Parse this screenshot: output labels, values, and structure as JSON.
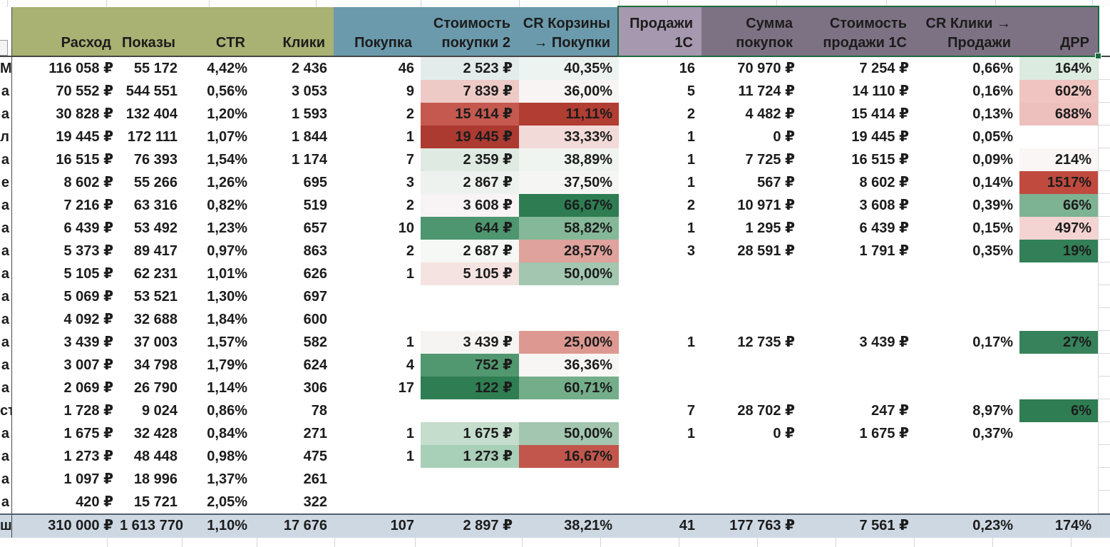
{
  "palette": {
    "header_olive": "#a9b173",
    "header_teal": "#6b9aac",
    "header_purple_light": "#a698ae",
    "header_purple_dark": "#7d7284",
    "selection_border_green": "#1d6b40",
    "total_row_bg": "#cdd8e3",
    "grid_line": "#d9d9d9",
    "text": "#1c1c1c",
    "scale_dark_green": "#2f7d52",
    "scale_dark_red": "#b23d33"
  },
  "columns": [
    {
      "id": "row-label",
      "label": "",
      "group": "none"
    },
    {
      "id": "rashod",
      "label": "Расход",
      "group": "olive"
    },
    {
      "id": "pokazy",
      "label": "Показы",
      "group": "olive"
    },
    {
      "id": "ctr",
      "label": "CTR",
      "group": "olive"
    },
    {
      "id": "kliki",
      "label": "Клики",
      "group": "olive"
    },
    {
      "id": "pokupka",
      "label": "Покупка",
      "group": "teal"
    },
    {
      "id": "stoimost-pokupki-2",
      "label": "Стоимость\nпокупки 2",
      "group": "teal"
    },
    {
      "id": "cr-korziny-pokupki",
      "label": "CR Корзины\n→ Покупки",
      "group": "teal"
    },
    {
      "id": "prodazhi-1c",
      "label": "Продажи\n1С",
      "group": "purple_light"
    },
    {
      "id": "summa-pokupok",
      "label": "Сумма\nпокупок",
      "group": "purple_dark"
    },
    {
      "id": "stoimost-prodazhi-1c",
      "label": "Стоимость\nпродажи 1С",
      "group": "purple_dark"
    },
    {
      "id": "cr-kliki-prodazhi",
      "label": "CR Клики →\nПродажи",
      "group": "purple_dark"
    },
    {
      "id": "drr",
      "label": "ДРР",
      "group": "purple_dark"
    }
  ],
  "rows": [
    {
      "label": "М",
      "values": [
        "116 058 ₽",
        "55 172",
        "4,42%",
        "2 436",
        "46",
        "2 523 ₽",
        "40,35%",
        "16",
        "70 970 ₽",
        "7 254 ₽",
        "0,66%",
        "164%"
      ],
      "fills": {
        "5": "#e3eceb",
        "6": "#edf3f0",
        "11": "#dcebe0"
      }
    },
    {
      "label": "а",
      "values": [
        "70 552 ₽",
        "544 551",
        "0,56%",
        "3 053",
        "9",
        "7 839 ₽",
        "36,00%",
        "5",
        "11 724 ₽",
        "14 110 ₽",
        "0,16%",
        "602%"
      ],
      "fills": {
        "5": "#eecac7",
        "6": "#f8f4f4",
        "11": "#efc4c1"
      }
    },
    {
      "label": "а",
      "values": [
        "30 828 ₽",
        "132 404",
        "1,20%",
        "1 593",
        "2",
        "15 414 ₽",
        "11,11%",
        "2",
        "4 482 ₽",
        "15 414 ₽",
        "0,13%",
        "688%"
      ],
      "fills": {
        "5": "#c5594f",
        "6": "#b23d33",
        "11": "#edc0bd"
      }
    },
    {
      "label": "л",
      "values": [
        "19 445 ₽",
        "172 111",
        "1,07%",
        "1 844",
        "1",
        "19 445 ₽",
        "33,33%",
        "1",
        "0 ₽",
        "19 445 ₽",
        "0,05%",
        ""
      ],
      "fills": {
        "5": "#ac3a31",
        "6": "#f2dad8"
      }
    },
    {
      "label": "а",
      "values": [
        "16 515 ₽",
        "76 393",
        "1,54%",
        "1 174",
        "7",
        "2 359 ₽",
        "38,89%",
        "1",
        "7 725 ₽",
        "16 515 ₽",
        "0,09%",
        "214%"
      ],
      "fills": {
        "5": "#dfeae2",
        "6": "#eff4f0",
        "11": "#faf6f5"
      }
    },
    {
      "label": "е",
      "values": [
        "8 602 ₽",
        "55 266",
        "1,26%",
        "695",
        "3",
        "2 867 ₽",
        "37,50%",
        "1",
        "567 ₽",
        "8 602 ₽",
        "0,14%",
        "1517%"
      ],
      "fills": {
        "5": "#eef2ee",
        "6": "#f5f6f4",
        "11": "#c04a3e"
      }
    },
    {
      "label": "а",
      "values": [
        "7 216 ₽",
        "63 316",
        "0,82%",
        "519",
        "2",
        "3 608 ₽",
        "66,67%",
        "2",
        "10 971 ₽",
        "3 608 ₽",
        "0,39%",
        "66%"
      ],
      "fills": {
        "5": "#f8f3f4",
        "6": "#2e7d52",
        "11": "#7db292"
      }
    },
    {
      "label": "а",
      "values": [
        "6 439 ₽",
        "53 492",
        "1,23%",
        "657",
        "10",
        "644 ₽",
        "58,82%",
        "1",
        "1 295 ₽",
        "6 439 ₽",
        "0,15%",
        "497%"
      ],
      "fills": {
        "5": "#4e9670",
        "6": "#85b898",
        "11": "#f4d4d2"
      }
    },
    {
      "label": "а",
      "values": [
        "5 373 ₽",
        "89 417",
        "0,97%",
        "863",
        "2",
        "2 687 ₽",
        "28,57%",
        "3",
        "28 591 ₽",
        "1 791 ₽",
        "0,35%",
        "19%"
      ],
      "fills": {
        "5": "#f5f8f5",
        "6": "#dfa29c",
        "11": "#337f58"
      }
    },
    {
      "label": "а",
      "values": [
        "5 105 ₽",
        "62 231",
        "1,01%",
        "626",
        "1",
        "5 105 ₽",
        "50,00%",
        "",
        "",
        "",
        "",
        ""
      ],
      "fills": {
        "5": "#f5e3e1",
        "6": "#a2c6af"
      }
    },
    {
      "label": "а",
      "values": [
        "5 069 ₽",
        "53 521",
        "1,30%",
        "697",
        "",
        "",
        "",
        "",
        "",
        "",
        "",
        ""
      ],
      "fills": {}
    },
    {
      "label": "а",
      "values": [
        "4 092 ₽",
        "32 688",
        "1,84%",
        "600",
        "",
        "",
        "",
        "",
        "",
        "",
        "",
        ""
      ],
      "fills": {}
    },
    {
      "label": "а",
      "values": [
        "3 439 ₽",
        "37 003",
        "1,57%",
        "582",
        "1",
        "3 439 ₽",
        "25,00%",
        "1",
        "12 735 ₽",
        "3 439 ₽",
        "0,17%",
        "27%"
      ],
      "fills": {
        "5": "#f6f4f2",
        "6": "#dd9991",
        "11": "#37825a"
      }
    },
    {
      "label": "а",
      "values": [
        "3 007 ₽",
        "34 798",
        "1,79%",
        "624",
        "4",
        "752 ₽",
        "36,36%",
        "",
        "",
        "",
        "",
        ""
      ],
      "fills": {
        "5": "#51976f",
        "6": "#f7f6f4"
      }
    },
    {
      "label": "а",
      "values": [
        "2 069 ₽",
        "26 790",
        "1,14%",
        "306",
        "17",
        "122 ₽",
        "60,71%",
        "",
        "",
        "",
        "",
        ""
      ],
      "fills": {
        "5": "#2f7d52",
        "6": "#74ad8a"
      }
    },
    {
      "label": "ст",
      "values": [
        "1 728 ₽",
        "9 024",
        "0,86%",
        "78",
        "",
        "",
        "",
        "7",
        "28 702 ₽",
        "247 ₽",
        "8,97%",
        "6%"
      ],
      "fills": {
        "11": "#2f7d53"
      }
    },
    {
      "label": "а",
      "values": [
        "1 675 ₽",
        "32 428",
        "0,84%",
        "271",
        "1",
        "1 675 ₽",
        "50,00%",
        "1",
        "0 ₽",
        "1 675 ₽",
        "0,37%",
        ""
      ],
      "fills": {
        "5": "#c5ddcc",
        "6": "#a2c6af"
      }
    },
    {
      "label": "а",
      "values": [
        "1 273 ₽",
        "48 448",
        "0,98%",
        "475",
        "1",
        "1 273 ₽",
        "16,67%",
        "",
        "",
        "",
        "",
        ""
      ],
      "fills": {
        "5": "#a8cfb7",
        "6": "#c2564c"
      }
    },
    {
      "label": "а",
      "values": [
        "1 097 ₽",
        "18 996",
        "1,37%",
        "261",
        "",
        "",
        "",
        "",
        "",
        "",
        "",
        ""
      ],
      "fills": {}
    },
    {
      "label": "а",
      "values": [
        "420 ₽",
        "15 721",
        "2,05%",
        "322",
        "",
        "",
        "",
        "",
        "",
        "",
        "",
        ""
      ],
      "fills": {}
    }
  ],
  "total_row": {
    "label": "ш",
    "values": [
      "310 000 ₽",
      "1 613 770",
      "1,10%",
      "17 676",
      "107",
      "2 897 ₽",
      "38,21%",
      "41",
      "177 763 ₽",
      "7 561 ₽",
      "0,23%",
      "174%"
    ]
  }
}
